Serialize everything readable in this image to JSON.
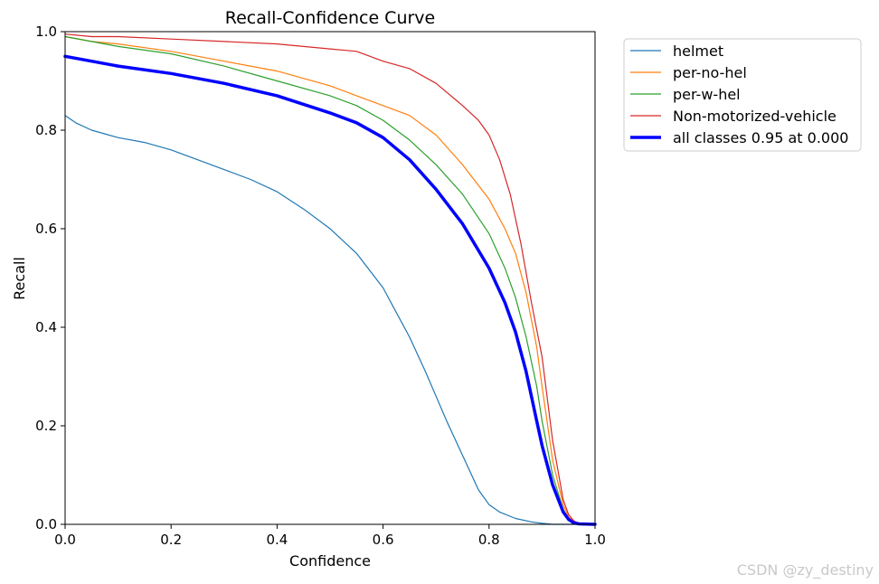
{
  "chart_data": {
    "type": "line",
    "title": "Recall-Confidence Curve",
    "xlabel": "Confidence",
    "ylabel": "Recall",
    "xlim": [
      0.0,
      1.0
    ],
    "ylim": [
      0.0,
      1.0
    ],
    "xticks": [
      "0.0",
      "0.2",
      "0.4",
      "0.6",
      "0.8",
      "1.0"
    ],
    "yticks": [
      "0.0",
      "0.2",
      "0.4",
      "0.6",
      "0.8",
      "1.0"
    ],
    "grid": false,
    "legend_position": "outside-top-right",
    "series": [
      {
        "name": "helmet",
        "color": "#1f77b4",
        "width": 1.2,
        "x": [
          0.0,
          0.02,
          0.05,
          0.1,
          0.15,
          0.2,
          0.25,
          0.3,
          0.35,
          0.4,
          0.45,
          0.5,
          0.55,
          0.6,
          0.62,
          0.65,
          0.68,
          0.7,
          0.72,
          0.75,
          0.78,
          0.8,
          0.82,
          0.85,
          0.88,
          0.9,
          0.92,
          0.95,
          1.0
        ],
        "y": [
          0.83,
          0.815,
          0.8,
          0.785,
          0.775,
          0.76,
          0.74,
          0.72,
          0.7,
          0.675,
          0.64,
          0.6,
          0.55,
          0.48,
          0.44,
          0.38,
          0.31,
          0.26,
          0.21,
          0.14,
          0.07,
          0.04,
          0.025,
          0.012,
          0.005,
          0.002,
          0.0,
          0.0,
          0.0
        ]
      },
      {
        "name": "per-no-hel",
        "color": "#ff7f0e",
        "width": 1.2,
        "x": [
          0.0,
          0.05,
          0.1,
          0.2,
          0.3,
          0.4,
          0.5,
          0.55,
          0.6,
          0.65,
          0.7,
          0.75,
          0.8,
          0.83,
          0.85,
          0.87,
          0.89,
          0.9,
          0.92,
          0.94,
          0.95,
          0.96,
          0.97,
          1.0
        ],
        "y": [
          0.99,
          0.98,
          0.975,
          0.96,
          0.94,
          0.92,
          0.89,
          0.87,
          0.85,
          0.83,
          0.79,
          0.73,
          0.66,
          0.6,
          0.55,
          0.47,
          0.36,
          0.28,
          0.13,
          0.04,
          0.015,
          0.005,
          0.001,
          0.0
        ]
      },
      {
        "name": "per-w-hel",
        "color": "#2ca02c",
        "width": 1.2,
        "x": [
          0.0,
          0.05,
          0.1,
          0.2,
          0.3,
          0.4,
          0.5,
          0.55,
          0.6,
          0.65,
          0.7,
          0.75,
          0.8,
          0.83,
          0.85,
          0.87,
          0.89,
          0.9,
          0.92,
          0.94,
          0.95,
          0.96,
          0.97,
          1.0
        ],
        "y": [
          0.99,
          0.98,
          0.97,
          0.955,
          0.93,
          0.9,
          0.87,
          0.85,
          0.82,
          0.78,
          0.73,
          0.67,
          0.59,
          0.52,
          0.46,
          0.38,
          0.28,
          0.21,
          0.1,
          0.03,
          0.012,
          0.004,
          0.001,
          0.0
        ]
      },
      {
        "name": "Non-motorized-vehicle",
        "color": "#d62728",
        "width": 1.2,
        "x": [
          0.0,
          0.05,
          0.1,
          0.2,
          0.3,
          0.4,
          0.5,
          0.55,
          0.6,
          0.65,
          0.7,
          0.75,
          0.78,
          0.8,
          0.82,
          0.84,
          0.86,
          0.88,
          0.9,
          0.92,
          0.94,
          0.95,
          0.96,
          0.97,
          1.0
        ],
        "y": [
          0.995,
          0.99,
          0.99,
          0.985,
          0.98,
          0.975,
          0.965,
          0.96,
          0.94,
          0.925,
          0.895,
          0.85,
          0.82,
          0.79,
          0.74,
          0.67,
          0.57,
          0.45,
          0.34,
          0.17,
          0.05,
          0.02,
          0.007,
          0.002,
          0.0
        ]
      },
      {
        "name": "all classes 0.95 at 0.000",
        "color": "#0000ff",
        "width": 3.5,
        "x": [
          0.0,
          0.05,
          0.1,
          0.2,
          0.3,
          0.4,
          0.5,
          0.55,
          0.6,
          0.65,
          0.7,
          0.75,
          0.8,
          0.83,
          0.85,
          0.87,
          0.89,
          0.9,
          0.92,
          0.94,
          0.95,
          0.96,
          0.97,
          1.0
        ],
        "y": [
          0.95,
          0.94,
          0.93,
          0.915,
          0.895,
          0.87,
          0.835,
          0.815,
          0.785,
          0.74,
          0.68,
          0.61,
          0.52,
          0.45,
          0.39,
          0.31,
          0.21,
          0.16,
          0.08,
          0.025,
          0.01,
          0.003,
          0.001,
          0.0
        ]
      }
    ]
  },
  "watermark": "CSDN @zy_destiny"
}
